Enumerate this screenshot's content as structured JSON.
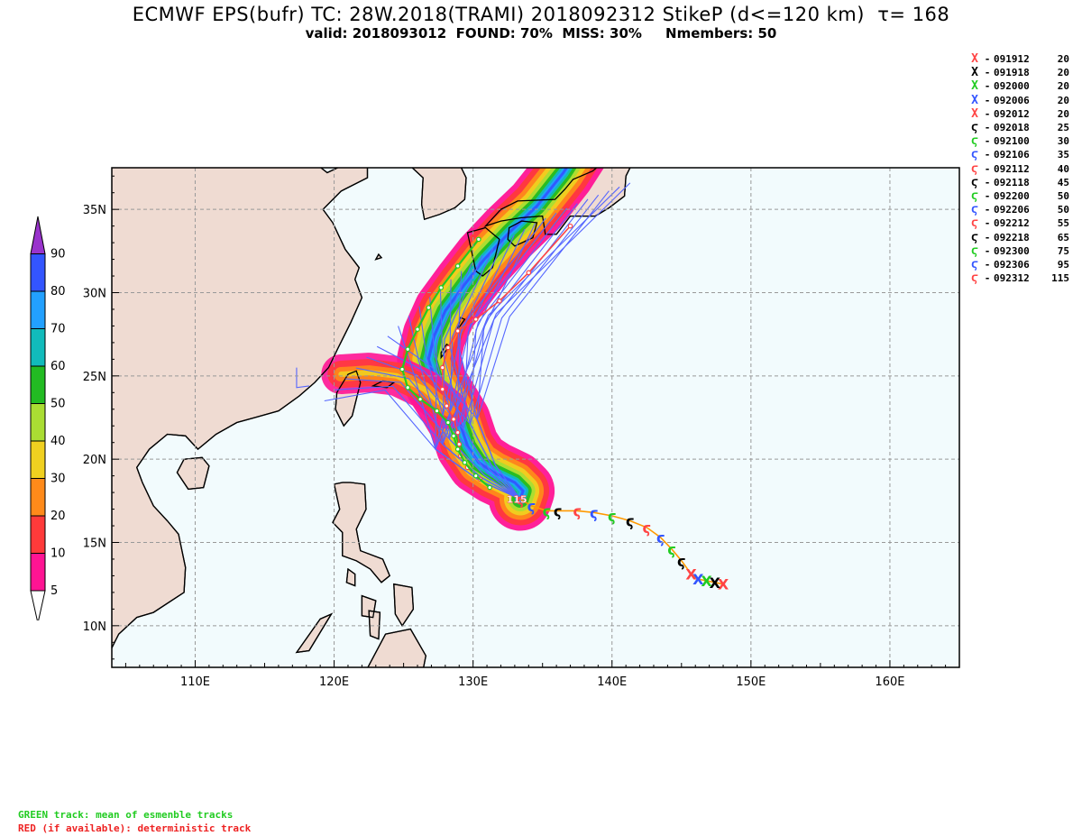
{
  "header": {
    "title": "ECMWF EPS(bufr) TC: 28W.2018(TRAMI) 2018092312 StikeP (d<=120 km)  τ= 168",
    "subtitle": "valid: 2018093012  FOUND: 70%  MISS: 30%     Nmembers: 50"
  },
  "legend": [
    {
      "time": "091912",
      "intensity": "20",
      "symbol": "X",
      "color": "#ff4444"
    },
    {
      "time": "091918",
      "intensity": "20",
      "symbol": "X",
      "color": "#000000"
    },
    {
      "time": "092000",
      "intensity": "20",
      "symbol": "X",
      "color": "#22cc22"
    },
    {
      "time": "092006",
      "intensity": "20",
      "symbol": "X",
      "color": "#3355ff"
    },
    {
      "time": "092012",
      "intensity": "20",
      "symbol": "X",
      "color": "#ff4444"
    },
    {
      "time": "092018",
      "intensity": "25",
      "symbol": "ϛ",
      "color": "#000000"
    },
    {
      "time": "092100",
      "intensity": "30",
      "symbol": "ϛ",
      "color": "#22cc22"
    },
    {
      "time": "092106",
      "intensity": "35",
      "symbol": "ϛ",
      "color": "#3355ff"
    },
    {
      "time": "092112",
      "intensity": "40",
      "symbol": "ϛ",
      "color": "#ff4444"
    },
    {
      "time": "092118",
      "intensity": "45",
      "symbol": "ϛ",
      "color": "#000000"
    },
    {
      "time": "092200",
      "intensity": "50",
      "symbol": "ϛ",
      "color": "#22cc22"
    },
    {
      "time": "092206",
      "intensity": "50",
      "symbol": "ϛ",
      "color": "#3355ff"
    },
    {
      "time": "092212",
      "intensity": "55",
      "symbol": "ϛ",
      "color": "#ff4444"
    },
    {
      "time": "092218",
      "intensity": "65",
      "symbol": "ϛ",
      "color": "#000000"
    },
    {
      "time": "092300",
      "intensity": "75",
      "symbol": "ϛ",
      "color": "#22cc22"
    },
    {
      "time": "092306",
      "intensity": "95",
      "symbol": "ϛ",
      "color": "#3355ff"
    },
    {
      "time": "092312",
      "intensity": "115",
      "symbol": "ϛ",
      "color": "#ff4444"
    }
  ],
  "legend_dash": "-",
  "colorbar": {
    "labels": [
      "5",
      "10",
      "20",
      "30",
      "40",
      "50",
      "60",
      "70",
      "80",
      "90"
    ],
    "colors": [
      "#ff1493",
      "#ff3a3a",
      "#ff8a1a",
      "#f0d020",
      "#aadd33",
      "#22bb22",
      "#11bbbb",
      "#22a0ff",
      "#3355ff",
      "#9933cc"
    ]
  },
  "axes": {
    "x_ticks": [
      "110E",
      "120E",
      "130E",
      "140E",
      "150E",
      "160E"
    ],
    "y_ticks": [
      "35N",
      "30N",
      "25N",
      "20N",
      "15N",
      "10N"
    ]
  },
  "current_intensity_label": "115",
  "chart_data": {
    "type": "map",
    "lon_range": [
      104,
      165
    ],
    "lat_range": [
      7.5,
      37.5
    ],
    "grid": true,
    "observed_track": [
      {
        "lon": 148.0,
        "lat": 12.5,
        "t": "091912"
      },
      {
        "lon": 147.4,
        "lat": 12.6,
        "t": "091918"
      },
      {
        "lon": 146.8,
        "lat": 12.7,
        "t": "092000"
      },
      {
        "lon": 146.2,
        "lat": 12.8,
        "t": "092006"
      },
      {
        "lon": 145.7,
        "lat": 13.1,
        "t": "092012"
      },
      {
        "lon": 145.0,
        "lat": 13.9,
        "t": "092018"
      },
      {
        "lon": 144.3,
        "lat": 14.6,
        "t": "092100"
      },
      {
        "lon": 143.5,
        "lat": 15.3,
        "t": "092106"
      },
      {
        "lon": 142.5,
        "lat": 15.9,
        "t": "092112"
      },
      {
        "lon": 141.3,
        "lat": 16.3,
        "t": "092118"
      },
      {
        "lon": 140.0,
        "lat": 16.6,
        "t": "092200"
      },
      {
        "lon": 138.7,
        "lat": 16.8,
        "t": "092206"
      },
      {
        "lon": 137.5,
        "lat": 16.9,
        "t": "092212"
      },
      {
        "lon": 136.1,
        "lat": 16.9,
        "t": "092218"
      },
      {
        "lon": 135.3,
        "lat": 16.9,
        "t": "092300"
      },
      {
        "lon": 134.2,
        "lat": 17.2,
        "t": "092306"
      },
      {
        "lon": 133.4,
        "lat": 17.6,
        "t": "092312"
      }
    ],
    "ensemble_mean_track": [
      [
        131.2,
        18.3
      ],
      [
        130.2,
        19.0
      ],
      [
        129.4,
        19.8
      ],
      [
        128.9,
        20.6
      ],
      [
        128.6,
        21.4
      ],
      [
        128.2,
        22.2
      ],
      [
        127.4,
        22.9
      ],
      [
        126.2,
        23.6
      ],
      [
        125.3,
        24.3
      ],
      [
        124.9,
        25.4
      ],
      [
        125.3,
        26.6
      ],
      [
        126.0,
        27.8
      ],
      [
        126.8,
        29.1
      ],
      [
        127.7,
        30.3
      ],
      [
        128.9,
        31.6
      ],
      [
        130.4,
        33.2
      ]
    ],
    "deterministic_track": [
      [
        130.5,
        18.8
      ],
      [
        129.6,
        19.5
      ],
      [
        129.1,
        20.2
      ],
      [
        129.0,
        20.9
      ],
      [
        128.9,
        21.6
      ],
      [
        128.6,
        22.4
      ],
      [
        128.1,
        23.2
      ],
      [
        127.8,
        24.2
      ],
      [
        127.8,
        25.5
      ],
      [
        128.2,
        26.7
      ],
      [
        128.9,
        27.7
      ],
      [
        130.2,
        28.4
      ],
      [
        131.9,
        29.5
      ],
      [
        134.0,
        31.2
      ],
      [
        137.0,
        34.0
      ]
    ]
  },
  "footer": {
    "green_note": "GREEN track: mean of esmenble tracks",
    "red_note": "RED (if available): deterministic track"
  }
}
